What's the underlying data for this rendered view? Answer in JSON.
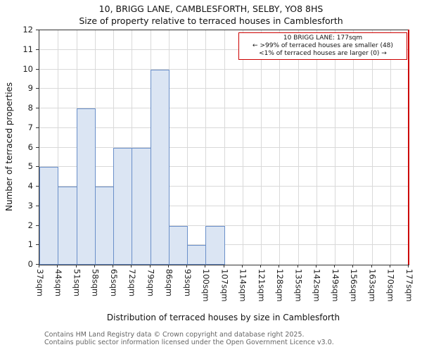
{
  "header": {
    "title": "10, BRIGG LANE, CAMBLESFORTH, SELBY, YO8 8HS",
    "subtitle": "Size of property relative to terraced houses in Camblesforth"
  },
  "chart_data": {
    "type": "bar",
    "categories": [
      "37sqm",
      "44sqm",
      "51sqm",
      "58sqm",
      "65sqm",
      "72sqm",
      "79sqm",
      "86sqm",
      "93sqm",
      "100sqm",
      "107sqm",
      "114sqm",
      "121sqm",
      "128sqm",
      "135sqm",
      "142sqm",
      "149sqm",
      "156sqm",
      "163sqm",
      "170sqm",
      "177sqm"
    ],
    "values": [
      5,
      4,
      8,
      4,
      6,
      6,
      10,
      2,
      1,
      2,
      0,
      0,
      0,
      0,
      0,
      0,
      0,
      0,
      0,
      0
    ],
    "title": "Size of property relative to terraced houses in Camblesforth",
    "xlabel": "Distribution of terraced houses by size in Camblesforth",
    "ylabel": "Number of terraced properties",
    "ylim": [
      0,
      12
    ],
    "yticks": [
      0,
      1,
      2,
      3,
      4,
      5,
      6,
      7,
      8,
      9,
      10,
      11,
      12
    ],
    "grid": true,
    "bar_fill": "#dbe5f3",
    "bar_border": "#6a8fc9",
    "grid_color": "#d9d9d9",
    "marker_color": "#cc0000",
    "marker_category": "177sqm"
  },
  "annotation": {
    "line1": "10 BRIGG LANE: 177sqm",
    "line2": "← >99% of terraced houses are smaller (48)",
    "line3": "<1% of terraced houses are larger (0) →"
  },
  "footer": {
    "line1": "Contains HM Land Registry data © Crown copyright and database right 2025.",
    "line2": "Contains public sector information licensed under the Open Government Licence v3.0."
  }
}
